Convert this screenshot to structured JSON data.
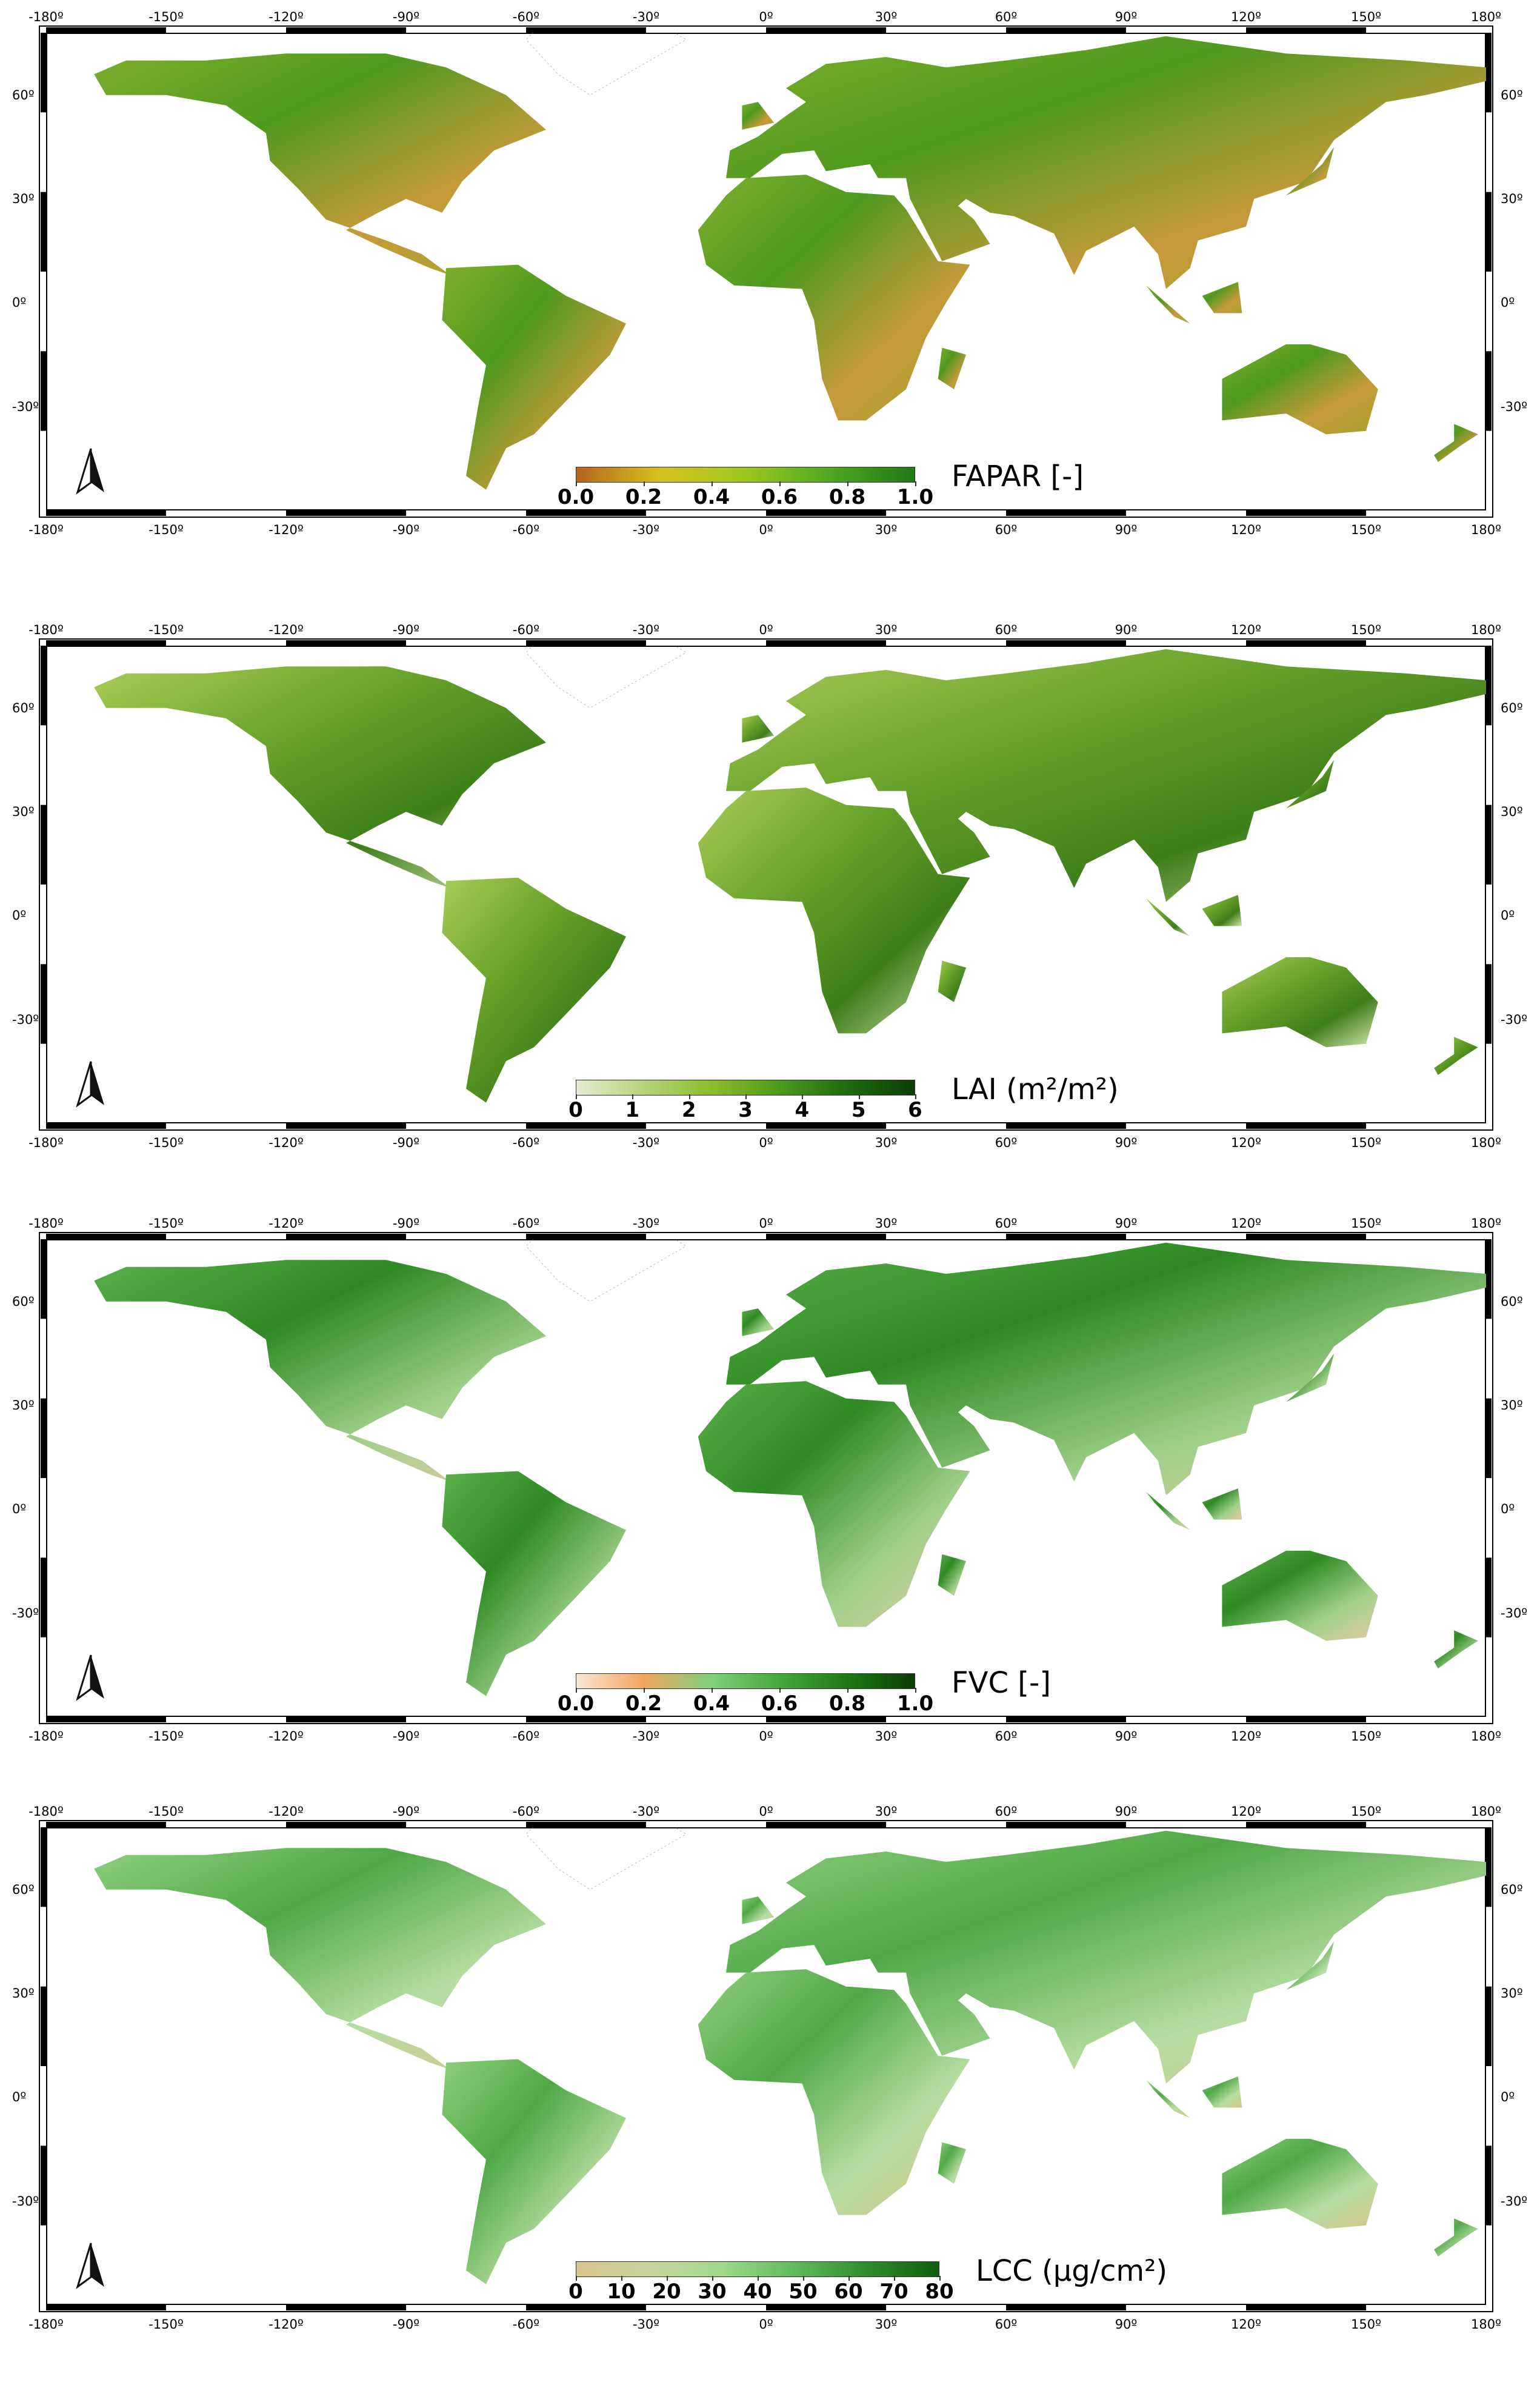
{
  "axes": {
    "lon_labels": [
      "-180º",
      "-150º",
      "-120º",
      "-90º",
      "-60º",
      "-30º",
      "0º",
      "30º",
      "60º",
      "90º",
      "120º",
      "150º",
      "180º"
    ],
    "lat_labels": [
      "60º",
      "30º",
      "0º",
      "-30º"
    ]
  },
  "panels": [
    {
      "id": "fapar",
      "title": "FAPAR [-]",
      "ticks": [
        "0.0",
        "0.2",
        "0.4",
        "0.6",
        "0.8",
        "1.0"
      ],
      "colors": [
        "#b5651d",
        "#d6c21f",
        "#9dc71e",
        "#4ea823",
        "#1f7a14"
      ],
      "land_colors": [
        "#7fae2c",
        "#4f9a1f",
        "#a3a32a",
        "#c69a3a"
      ]
    },
    {
      "id": "lai",
      "title": "LAI (m²/m²)",
      "ticks": [
        "0",
        "1",
        "2",
        "3",
        "4",
        "5",
        "6"
      ],
      "colors": [
        "#e4ecd0",
        "#b7d37a",
        "#8cbc2b",
        "#4f9a1d",
        "#1f6b0f",
        "#0d3d06"
      ],
      "land_colors": [
        "#a9cc58",
        "#6ca52c",
        "#d8e7b2",
        "#3e7f19"
      ]
    },
    {
      "id": "fvc",
      "title": "FVC [-]",
      "ticks": [
        "0.0",
        "0.2",
        "0.4",
        "0.6",
        "0.8",
        "1.0"
      ],
      "colors": [
        "#fbe6d2",
        "#f2a460",
        "#7ed17a",
        "#45a93a",
        "#1e7a14",
        "#0a3d05"
      ],
      "land_colors": [
        "#5bb04a",
        "#2f8a24",
        "#e7c9a6",
        "#9fd08a"
      ]
    },
    {
      "id": "lcc",
      "title": "LCC (µg/cm²)",
      "ticks": [
        "0",
        "10",
        "20",
        "30",
        "40",
        "50",
        "60",
        "70",
        "80"
      ],
      "colors": [
        "#d6c38c",
        "#c9d4a0",
        "#9ed98c",
        "#5fbc5a",
        "#2e8f2a",
        "#0f5f0c"
      ],
      "land_colors": [
        "#8fcf7d",
        "#4fa846",
        "#d8c489",
        "#b6dda2"
      ]
    }
  ]
}
